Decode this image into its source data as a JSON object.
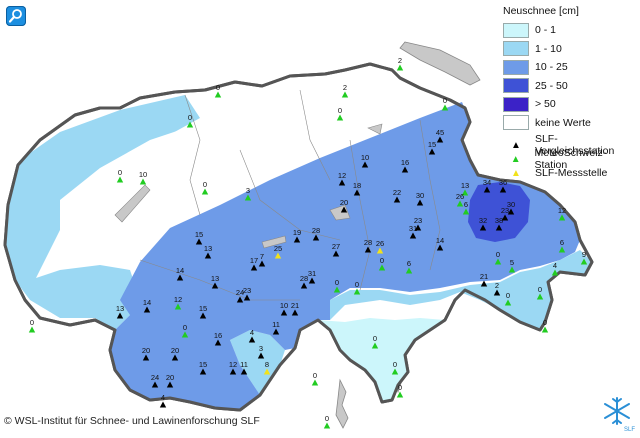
{
  "legend": {
    "title": "Neuschnee [cm]",
    "classes": [
      {
        "label": "0 - 1",
        "color": "#ccf6fb"
      },
      {
        "label": "1 - 10",
        "color": "#9bd8f3"
      },
      {
        "label": "10 - 25",
        "color": "#6e9be8"
      },
      {
        "label": "25 - 50",
        "color": "#3e52d6"
      },
      {
        "label": "> 50",
        "color": "#3b22c7"
      },
      {
        "label": "keine Werte",
        "color": "#ffffff"
      }
    ],
    "symbols": [
      {
        "label": "SLF-Vergleichsstation",
        "icon": "black-triangle-icon",
        "color": "#000000"
      },
      {
        "label": "MeteoSchweiz-Station",
        "icon": "green-triangle-icon",
        "color": "#22cc22"
      },
      {
        "label": "SLF-Messstelle",
        "icon": "yellow-triangle-icon",
        "color": "#f2e21a"
      }
    ]
  },
  "copyright": "© WSL-Institut für Schnee- und Lawinenforschung SLF",
  "logo_text": "SLF",
  "stations": [
    {
      "value": "0",
      "type": "green"
    },
    {
      "value": "0",
      "type": "green"
    },
    {
      "value": "2",
      "type": "green"
    },
    {
      "value": "2",
      "type": "green"
    },
    {
      "value": "0",
      "type": "green"
    },
    {
      "value": "0",
      "type": "green"
    },
    {
      "value": "0",
      "type": "green"
    },
    {
      "value": "10",
      "type": "green"
    },
    {
      "value": "3",
      "type": "green"
    },
    {
      "value": "0",
      "type": "green"
    },
    {
      "value": "45",
      "type": "black"
    },
    {
      "value": "15",
      "type": "black"
    },
    {
      "value": "16",
      "type": "black"
    },
    {
      "value": "10",
      "type": "black"
    },
    {
      "value": "12",
      "type": "black"
    },
    {
      "value": "18",
      "type": "black"
    },
    {
      "value": "20",
      "type": "black"
    },
    {
      "value": "22",
      "type": "black"
    },
    {
      "value": "30",
      "type": "black"
    },
    {
      "value": "13",
      "type": "green"
    },
    {
      "value": "26",
      "type": "green"
    },
    {
      "value": "34",
      "type": "black"
    },
    {
      "value": "36",
      "type": "black"
    },
    {
      "value": "30",
      "type": "black"
    },
    {
      "value": "23",
      "type": "black"
    },
    {
      "value": "32",
      "type": "black"
    },
    {
      "value": "38",
      "type": "black"
    },
    {
      "value": "6",
      "type": "green"
    },
    {
      "value": "12",
      "type": "green"
    },
    {
      "value": "23",
      "type": "black"
    },
    {
      "value": "31",
      "type": "black"
    },
    {
      "value": "15",
      "type": "black"
    },
    {
      "value": "13",
      "type": "black"
    },
    {
      "value": "19",
      "type": "black"
    },
    {
      "value": "28",
      "type": "black"
    },
    {
      "value": "27",
      "type": "black"
    },
    {
      "value": "28",
      "type": "black"
    },
    {
      "value": "26",
      "type": "yellow"
    },
    {
      "value": "14",
      "type": "black"
    },
    {
      "value": "17",
      "type": "black"
    },
    {
      "value": "7",
      "type": "black"
    },
    {
      "value": "25",
      "type": "yellow"
    },
    {
      "value": "14",
      "type": "black"
    },
    {
      "value": "13",
      "type": "black"
    },
    {
      "value": "24",
      "type": "black"
    },
    {
      "value": "23",
      "type": "black"
    },
    {
      "value": "28",
      "type": "black"
    },
    {
      "value": "31",
      "type": "black"
    },
    {
      "value": "0",
      "type": "green"
    },
    {
      "value": "0",
      "type": "green"
    },
    {
      "value": "0",
      "type": "green"
    },
    {
      "value": "6",
      "type": "green"
    },
    {
      "value": "21",
      "type": "black"
    },
    {
      "value": "5",
      "type": "green"
    },
    {
      "value": "6",
      "type": "green"
    },
    {
      "value": "4",
      "type": "green"
    },
    {
      "value": "2",
      "type": "black"
    },
    {
      "value": "0",
      "type": "green"
    },
    {
      "value": "0",
      "type": "green"
    },
    {
      "value": "14",
      "type": "black"
    },
    {
      "value": "12",
      "type": "green"
    },
    {
      "value": "13",
      "type": "black"
    },
    {
      "value": "15",
      "type": "black"
    },
    {
      "value": "10",
      "type": "black"
    },
    {
      "value": "21",
      "type": "black"
    },
    {
      "value": "0",
      "type": "green"
    },
    {
      "value": "0",
      "type": "green"
    },
    {
      "value": "11",
      "type": "black"
    },
    {
      "value": "16",
      "type": "black"
    },
    {
      "value": "20",
      "type": "black"
    },
    {
      "value": "20",
      "type": "black"
    },
    {
      "value": "15",
      "type": "black"
    },
    {
      "value": "24",
      "type": "black"
    },
    {
      "value": "20",
      "type": "black"
    },
    {
      "value": "4",
      "type": "black"
    },
    {
      "value": "12",
      "type": "black"
    },
    {
      "value": "11",
      "type": "black"
    },
    {
      "value": "4",
      "type": "black"
    },
    {
      "value": "3",
      "type": "black"
    },
    {
      "value": "8",
      "type": "yellow"
    },
    {
      "value": "0",
      "type": "green"
    },
    {
      "value": "0",
      "type": "green"
    },
    {
      "value": "0",
      "type": "green"
    },
    {
      "value": "0",
      "type": "green"
    },
    {
      "value": "0",
      "type": "green"
    },
    {
      "value": "0",
      "type": "green"
    },
    {
      "value": "0",
      "type": "green"
    },
    {
      "value": "9",
      "type": "green"
    }
  ]
}
